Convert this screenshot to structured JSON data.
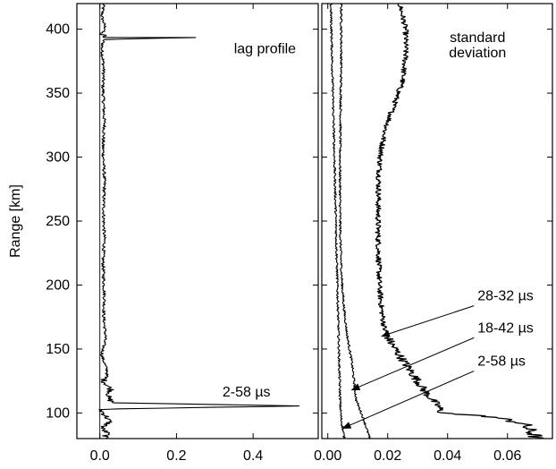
{
  "chart_data": [
    {
      "type": "line",
      "panel": "left",
      "ylabel": "Range [km]",
      "xlim": [
        -0.06,
        0.57
      ],
      "ylim": [
        80,
        420
      ],
      "xticks": [
        0.0,
        0.2,
        0.4
      ],
      "xtick_labels": [
        "0.0",
        "0.2",
        "0.4"
      ],
      "yticks": [
        100,
        150,
        200,
        250,
        300,
        350,
        400
      ],
      "ytick_labels": [
        "100",
        "150",
        "200",
        "250",
        "300",
        "350",
        "400"
      ],
      "grid": false,
      "annotations": [
        {
          "text": "lag profile",
          "x": 0.35,
          "y": 381
        },
        {
          "text": "2-58 µs",
          "x": 0.32,
          "y": 113
        }
      ],
      "series": [
        {
          "profile": {
            "x": [
              0.01,
              0.005,
              0.015,
              0.0,
              0.02,
              0.005,
              0.01,
              0.25,
              0.01,
              0.005,
              0.01,
              0.008,
              0.01,
              0.012,
              0.008,
              0.01,
              0.012,
              0.01,
              0.01,
              0.012,
              0.008,
              0.01,
              0.012,
              0.01,
              0.015,
              0.005,
              0.02,
              0.01,
              0.03,
              0.02,
              0.035,
              0.52,
              0.0,
              0.015,
              0.025,
              0.005,
              0.02,
              0.01
            ],
            "y": [
              420,
              410,
              400,
              396,
              395,
              394,
              393.5,
              393.5,
              392,
              385,
              370,
              355,
              340,
              325,
              310,
              295,
              280,
              265,
              250,
              235,
              220,
              205,
              190,
              175,
              160,
              145,
              132,
              125,
              118,
              112,
              108,
              105.5,
              103,
              98,
              93,
              88,
              84,
              80
            ]
          }
        }
      ]
    },
    {
      "type": "line",
      "panel": "right",
      "xlim": [
        -0.002,
        0.075
      ],
      "ylim": [
        80,
        420
      ],
      "xticks": [
        0.0,
        0.02,
        0.04,
        0.06
      ],
      "xtick_labels": [
        "0.00",
        "0.02",
        "0.04",
        "0.06"
      ],
      "yticks": [
        100,
        150,
        200,
        250,
        300,
        350,
        400
      ],
      "grid": false,
      "annotations": [
        {
          "text": "standard",
          "x": 0.05,
          "y": 390
        },
        {
          "text": "deviation",
          "x": 0.05,
          "y": 378
        },
        {
          "text": "28-32 µs",
          "x": 0.05,
          "y": 188,
          "arrow_to": {
            "x": 0.018,
            "y": 160
          }
        },
        {
          "text": "18-42 µs",
          "x": 0.05,
          "y": 163,
          "arrow_to": {
            "x": 0.008,
            "y": 118
          }
        },
        {
          "text": "2-58 µs",
          "x": 0.05,
          "y": 137,
          "arrow_to": {
            "x": 0.005,
            "y": 88
          }
        }
      ],
      "series": [
        {
          "lag": "28-32 µs",
          "x": [
            0.024,
            0.026,
            0.026,
            0.025,
            0.022,
            0.019,
            0.0175,
            0.017,
            0.0168,
            0.0168,
            0.017,
            0.0172,
            0.018,
            0.019,
            0.021,
            0.024,
            0.027,
            0.03,
            0.033,
            0.037,
            0.038,
            0.055,
            0.065,
            0.07
          ],
          "y": [
            420,
            400,
            380,
            360,
            340,
            320,
            300,
            280,
            260,
            240,
            220,
            200,
            180,
            165,
            155,
            145,
            135,
            125,
            115,
            105,
            100,
            97,
            92,
            80
          ]
        },
        {
          "lag": "18-42 µs",
          "x": [
            0.0045,
            0.0045,
            0.0045,
            0.0044,
            0.0043,
            0.0042,
            0.0041,
            0.0041,
            0.0041,
            0.0042,
            0.0044,
            0.0048,
            0.0055,
            0.0065,
            0.008,
            0.009,
            0.0095,
            0.012,
            0.014
          ],
          "y": [
            420,
            400,
            380,
            360,
            340,
            320,
            300,
            280,
            260,
            240,
            220,
            200,
            180,
            160,
            140,
            120,
            110,
            95,
            80
          ]
        },
        {
          "lag": "2-58 µs",
          "x": [
            0.001,
            0.0012,
            0.0014,
            0.0016,
            0.0018,
            0.002,
            0.0022,
            0.0024,
            0.0026,
            0.0028,
            0.003,
            0.0032,
            0.0034,
            0.0036,
            0.0038,
            0.004,
            0.0042,
            0.0045,
            0.0055
          ],
          "y": [
            420,
            400,
            380,
            360,
            340,
            320,
            300,
            280,
            260,
            240,
            220,
            200,
            180,
            160,
            140,
            120,
            105,
            95,
            80
          ]
        }
      ]
    }
  ]
}
